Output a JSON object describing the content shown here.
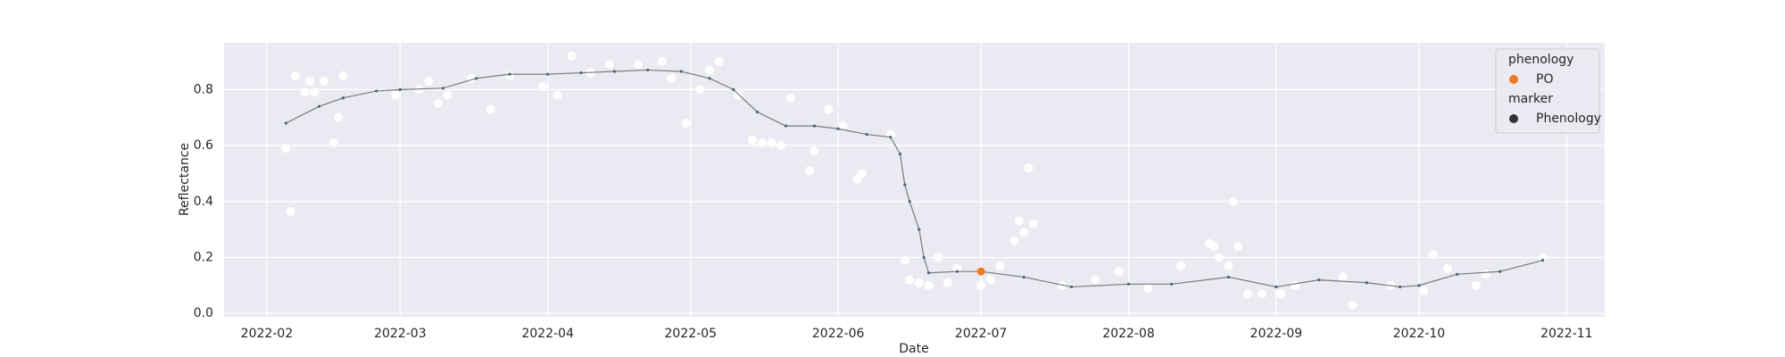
{
  "chart_data": {
    "type": "scatter",
    "x_label": "Date",
    "y_label": "Reflectance",
    "xlim": [
      "2022-01-23",
      "2022-11-09"
    ],
    "ylim": [
      -0.012,
      0.967
    ],
    "xticks": [
      {
        "value": "2022-02-01",
        "label": "2022-02"
      },
      {
        "value": "2022-03-01",
        "label": "2022-03"
      },
      {
        "value": "2022-04-01",
        "label": "2022-04"
      },
      {
        "value": "2022-05-01",
        "label": "2022-05"
      },
      {
        "value": "2022-06-01",
        "label": "2022-06"
      },
      {
        "value": "2022-07-01",
        "label": "2022-07"
      },
      {
        "value": "2022-08-01",
        "label": "2022-08"
      },
      {
        "value": "2022-09-01",
        "label": "2022-09"
      },
      {
        "value": "2022-10-01",
        "label": "2022-10"
      },
      {
        "value": "2022-11-01",
        "label": "2022-11"
      }
    ],
    "yticks": [
      {
        "value": 0,
        "label": "0.0"
      },
      0.2,
      0.4,
      0.6,
      0.8
    ],
    "grid": true,
    "series": [
      {
        "type": "scatter",
        "color": "#ffffff",
        "x": [
          "2022-02-05",
          "2022-02-06",
          "2022-02-07",
          "2022-02-09",
          "2022-02-10",
          "2022-02-11",
          "2022-02-13",
          "2022-02-15",
          "2022-02-16",
          "2022-02-17",
          "2022-02-28",
          "2022-03-05",
          "2022-03-07",
          "2022-03-09",
          "2022-03-11",
          "2022-03-16",
          "2022-03-20",
          "2022-03-24",
          "2022-03-31",
          "2022-04-03",
          "2022-04-06",
          "2022-04-10",
          "2022-04-14",
          "2022-04-20",
          "2022-04-25",
          "2022-04-27",
          "2022-04-30",
          "2022-05-03",
          "2022-05-05",
          "2022-05-07",
          "2022-05-11",
          "2022-05-14",
          "2022-05-16",
          "2022-05-18",
          "2022-05-20",
          "2022-05-22",
          "2022-05-26",
          "2022-05-27",
          "2022-05-30",
          "2022-06-02",
          "2022-06-05",
          "2022-06-06",
          "2022-06-12",
          "2022-06-15",
          "2022-06-16",
          "2022-06-18",
          "2022-06-20",
          "2022-06-22",
          "2022-06-24",
          "2022-06-26",
          "2022-07-01",
          "2022-07-03",
          "2022-07-05",
          "2022-07-08",
          "2022-07-09",
          "2022-07-10",
          "2022-07-11",
          "2022-07-12",
          "2022-07-18",
          "2022-07-25",
          "2022-07-30",
          "2022-08-05",
          "2022-08-12",
          "2022-08-18",
          "2022-08-19",
          "2022-08-20",
          "2022-08-22",
          "2022-08-23",
          "2022-08-24",
          "2022-08-26",
          "2022-08-29",
          "2022-09-02",
          "2022-09-05",
          "2022-09-15",
          "2022-09-17",
          "2022-09-25",
          "2022-10-02",
          "2022-10-04",
          "2022-10-07",
          "2022-10-13",
          "2022-10-15",
          "2022-10-27"
        ],
        "values": [
          0.59,
          0.365,
          0.85,
          0.79,
          0.83,
          0.79,
          0.83,
          0.61,
          0.7,
          0.85,
          0.78,
          0.8,
          0.83,
          0.75,
          0.78,
          0.84,
          0.73,
          0.85,
          0.81,
          0.78,
          0.92,
          0.86,
          0.89,
          0.89,
          0.9,
          0.84,
          0.68,
          0.8,
          0.87,
          0.9,
          0.78,
          0.62,
          0.61,
          0.61,
          0.6,
          0.77,
          0.51,
          0.58,
          0.73,
          0.67,
          0.48,
          0.5,
          0.64,
          0.19,
          0.12,
          0.11,
          0.1,
          0.2,
          0.11,
          0.16,
          0.1,
          0.12,
          0.17,
          0.26,
          0.33,
          0.29,
          0.52,
          0.32,
          0.1,
          0.12,
          0.15,
          0.09,
          0.17,
          0.25,
          0.24,
          0.2,
          0.17,
          0.4,
          0.24,
          0.07,
          0.07,
          0.07,
          0.1,
          0.13,
          0.03,
          0.1,
          0.08,
          0.21,
          0.16,
          0.1,
          0.14,
          0.2
        ]
      },
      {
        "type": "line",
        "color": "#4f6378",
        "x": [
          "2022-02-05",
          "2022-02-12",
          "2022-02-17",
          "2022-02-24",
          "2022-03-01",
          "2022-03-10",
          "2022-03-17",
          "2022-03-24",
          "2022-04-01",
          "2022-04-08",
          "2022-04-15",
          "2022-04-22",
          "2022-04-29",
          "2022-05-05",
          "2022-05-10",
          "2022-05-15",
          "2022-05-21",
          "2022-05-27",
          "2022-06-01",
          "2022-06-07",
          "2022-06-12",
          "2022-06-14",
          "2022-06-15",
          "2022-06-16",
          "2022-06-18",
          "2022-06-19",
          "2022-06-20",
          "2022-06-26",
          "2022-07-01",
          "2022-07-10",
          "2022-07-20",
          "2022-08-01",
          "2022-08-10",
          "2022-08-22",
          "2022-09-01",
          "2022-09-10",
          "2022-09-20",
          "2022-09-27",
          "2022-10-01",
          "2022-10-09",
          "2022-10-18",
          "2022-10-27"
        ],
        "values": [
          0.68,
          0.74,
          0.77,
          0.795,
          0.8,
          0.805,
          0.84,
          0.855,
          0.855,
          0.86,
          0.865,
          0.87,
          0.865,
          0.84,
          0.8,
          0.72,
          0.67,
          0.67,
          0.66,
          0.64,
          0.63,
          0.57,
          0.46,
          0.4,
          0.3,
          0.2,
          0.145,
          0.15,
          0.15,
          0.13,
          0.095,
          0.105,
          0.105,
          0.13,
          0.095,
          0.12,
          0.11,
          0.095,
          0.1,
          0.14,
          0.15,
          0.19
        ]
      },
      {
        "type": "scatter",
        "name": "PO",
        "color": "#ee7a22",
        "x": [
          "2022-07-01"
        ],
        "values": [
          0.15
        ]
      }
    ],
    "legend": {
      "position": "upper right",
      "groups": [
        {
          "title": "phenology",
          "entries": [
            {
              "name": "PO",
              "color": "#ee7a22"
            }
          ]
        },
        {
          "title": "marker",
          "entries": [
            {
              "name": "Phenology",
              "color": "#333333"
            }
          ]
        }
      ]
    }
  }
}
